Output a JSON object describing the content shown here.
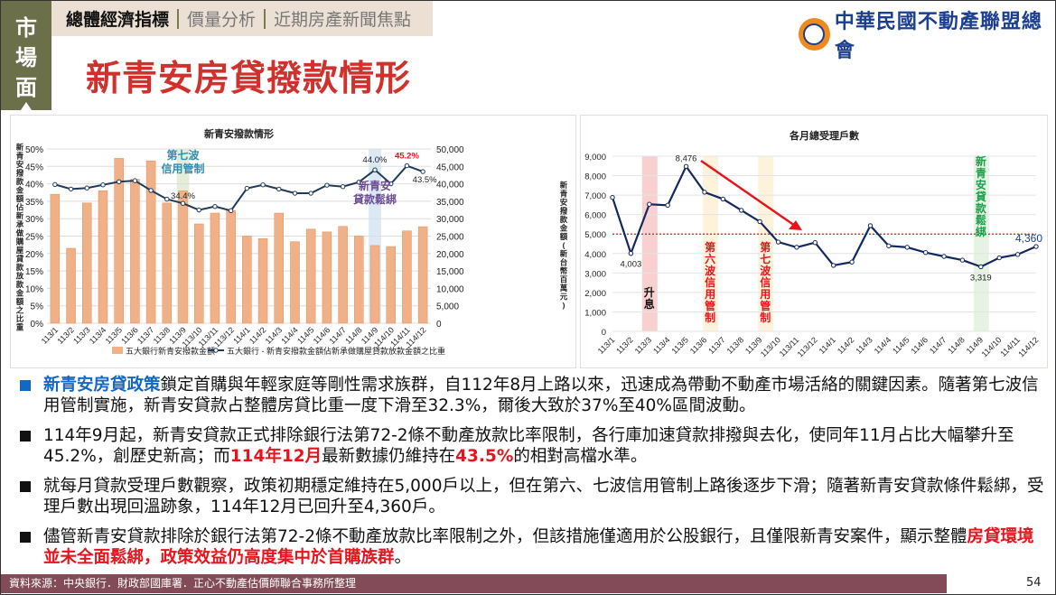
{
  "sidebar": {
    "label_chars": [
      "市",
      "場",
      "面"
    ]
  },
  "tabs": [
    {
      "label": "總體經濟指標",
      "active": true
    },
    {
      "label": "價量分析",
      "active": false
    },
    {
      "label": "近期房產新聞焦點",
      "active": false
    }
  ],
  "title": "新青安房貸撥款情形",
  "logo": {
    "name": "中華民國不動產聯盟總會"
  },
  "colors": {
    "accent_red": "#d0312d",
    "bar": "#f0b088",
    "line": "#1f3a5a",
    "line2": "#13285e",
    "footer": "#834b58"
  },
  "chart_data": [
    {
      "type": "bar+line",
      "title": "新青安撥款情形",
      "categories": [
        "113/1",
        "113/2",
        "113/3",
        "113/4",
        "113/5",
        "113/6",
        "113/7",
        "113/8",
        "113/9",
        "113/10",
        "113/11",
        "113/12",
        "114/1",
        "114/2",
        "114/3",
        "114/4",
        "114/5",
        "114/6",
        "114/7",
        "114/8",
        "114/9",
        "114/10",
        "114/11",
        "114/12"
      ],
      "series": [
        {
          "name": "五大銀行新青安撥款金額",
          "axis": "right",
          "type": "bar",
          "values": [
            37000,
            21500,
            34500,
            38000,
            47300,
            41300,
            46600,
            34500,
            38000,
            28500,
            31600,
            32300,
            25000,
            24300,
            31600,
            23400,
            27000,
            26200,
            27800,
            25000,
            22300,
            22000,
            26500,
            27700
          ]
        },
        {
          "name": "五大銀行 - 新青安撥款金額佔新承做購屋貸款放款金額之比重",
          "axis": "left",
          "type": "line",
          "values": [
            39.8,
            38.5,
            38.8,
            39.7,
            40.6,
            40.9,
            38.1,
            35.6,
            34.4,
            32.5,
            33.5,
            32.3,
            38.7,
            39.7,
            38.5,
            37.3,
            37.3,
            39.6,
            39.2,
            40.5,
            44.0,
            40.0,
            45.2,
            43.5
          ]
        }
      ],
      "ylabel_left": "新青安撥款金額佔新承做購屋貸款放款金額之比重",
      "ylabel_right": "新青安撥款金額(新台幣百萬元)",
      "ylim_left": [
        0,
        50
      ],
      "yticks_left": [
        "0%",
        "5%",
        "10%",
        "15%",
        "20%",
        "25%",
        "30%",
        "35%",
        "40%",
        "45%",
        "50%"
      ],
      "ylim_right": [
        0,
        50000
      ],
      "yticks_right": [
        "0",
        "5,000",
        "10,000",
        "15,000",
        "20,000",
        "25,000",
        "30,000",
        "35,000",
        "40,000",
        "45,000",
        "50,000"
      ],
      "data_labels": [
        {
          "index": 8,
          "text": "34.4%"
        },
        {
          "index": 20,
          "text": "44.0%"
        },
        {
          "index": 22,
          "text": "45.2%",
          "color": "#e8141c"
        },
        {
          "index": 23,
          "text": "43.5%"
        }
      ],
      "annotations": [
        {
          "index": 8,
          "text": [
            "第七波",
            "信用管制"
          ],
          "band": "#e3edd8",
          "color": "#2e8fb0"
        },
        {
          "index": 20,
          "text": [
            "新青安",
            "貸款鬆綁"
          ],
          "band": "#dce8f4",
          "color": "#6a4c93"
        }
      ],
      "legend": "bottom"
    },
    {
      "type": "line",
      "title": "各月總受理戶數",
      "categories": [
        "113/1",
        "113/2",
        "113/3",
        "113/4",
        "113/5",
        "113/6",
        "113/7",
        "113/8",
        "113/9",
        "113/10",
        "113/11",
        "113/12",
        "114/1",
        "114/2",
        "114/3",
        "114/4",
        "114/5",
        "114/6",
        "114/7",
        "114/8",
        "114/9",
        "114/10",
        "114/11",
        "114/12"
      ],
      "values": [
        6880,
        4003,
        6530,
        6480,
        8476,
        7150,
        6800,
        6220,
        5640,
        4590,
        4320,
        4560,
        3390,
        3560,
        5430,
        4390,
        4320,
        4050,
        3850,
        3660,
        3319,
        3780,
        3950,
        4360
      ],
      "ylim": [
        0,
        9000
      ],
      "yticks": [
        "0",
        "1,000",
        "2,000",
        "3,000",
        "4,000",
        "5,000",
        "6,000",
        "7,000",
        "8,000",
        "9,000"
      ],
      "reference_line": 5000,
      "data_labels": [
        {
          "index": 1,
          "text": "4,003"
        },
        {
          "index": 4,
          "text": "8,476"
        },
        {
          "index": 20,
          "text": "3,319"
        },
        {
          "index": 23,
          "text": "4,360"
        }
      ],
      "annotations": [
        {
          "index": 2,
          "text": "升息",
          "band": "#f8d0d0",
          "color": "#111"
        },
        {
          "index": 6,
          "text": "第六波信用管制",
          "band": "#fdf3dc",
          "color": "#e8141c"
        },
        {
          "index": 9,
          "text": "第七波信用管制",
          "band": "#fdf3dc",
          "color": "#e8141c"
        },
        {
          "index": 20,
          "text": "新青安貸款鬆綁",
          "band": "#e6f2e2",
          "color": "#1aa04a"
        }
      ]
    }
  ],
  "bullets": [
    {
      "parts": [
        {
          "t": "新青安房貸政策",
          "s": "blue"
        },
        {
          "t": "鎖定首購與年輕家庭等剛性需求族群，自112年8月上路以來，迅速成為帶動不動產市場活絡的關鍵因素。隨著第七波信用管制實施，新青安貸款占整體房貸比重一度下滑至32.3%，爾後大致於37%至40%區間波動。"
        }
      ]
    },
    {
      "parts": [
        {
          "t": "114年9月起，新青安貸款正式排除銀行法第72-2條不動產放款比率限制，各行庫加速貸款排撥與去化，使同年11月占比大幅攀升至45.2%，創歷史新高；而"
        },
        {
          "t": "114年12月",
          "s": "red"
        },
        {
          "t": "最新數據仍維持在"
        },
        {
          "t": "43.5%",
          "s": "red"
        },
        {
          "t": "的相對高檔水準。"
        }
      ]
    },
    {
      "parts": [
        {
          "t": "就每月貸款受理戶數觀察，政策初期穩定維持在5,000戶以上，但在第六、七波信用管制上路後逐步下滑；隨著新青安貸款條件鬆綁，受理戶數出現回溫跡象，114年12月已回升至4,360戶。"
        }
      ]
    },
    {
      "parts": [
        {
          "t": "儘管新青安貸款排除於銀行法第72-2條不動產放款比率限制之外，但該措施僅適用於公股銀行，且僅限新青安案件，顯示整體"
        },
        {
          "t": "房貸環境並未全面鬆綁，政策效益仍高度集中於首購族群",
          "s": "red"
        },
        {
          "t": "。"
        }
      ]
    }
  ],
  "footer": {
    "source": "資料來源：中央銀行．財政部國庫署．正心不動產估價師聯合事務所整理",
    "page": "54"
  }
}
